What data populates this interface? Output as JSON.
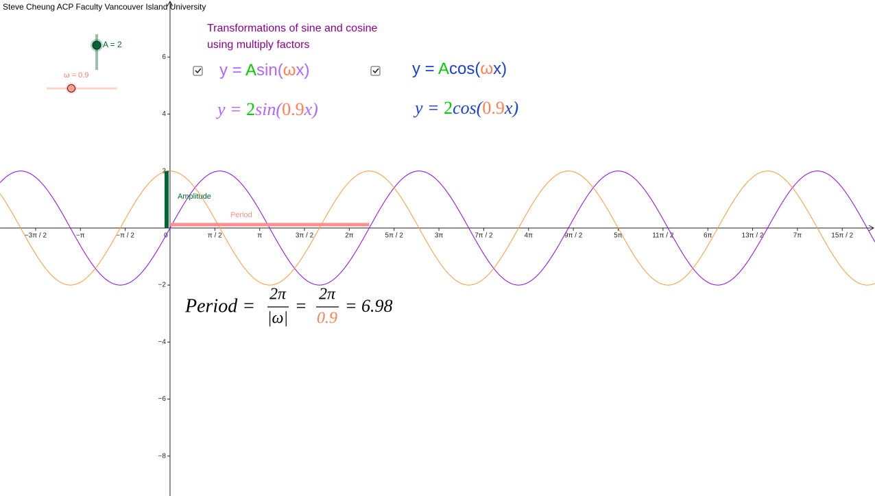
{
  "credit": "Steve Cheung ACP Faculty Vancouver Island University",
  "heading": [
    "Transformations of sine and cosine",
    "using multiply factors"
  ],
  "sliders": [
    {
      "label": "A = 2",
      "value": 2,
      "color": "#006633"
    },
    {
      "label": "ω = 0.9",
      "value": 0.9,
      "color": "#ff7c6b"
    }
  ],
  "formulas": [
    [
      {
        "text": "y = ",
        "color": "#b266ff"
      },
      {
        "text": "A",
        "color": "#00cc00"
      },
      {
        "text": "sin(",
        "color": "#b266ff"
      },
      {
        "text": "ω",
        "color": "#ff7f50"
      },
      {
        "text": "x)",
        "color": "#b266ff"
      }
    ],
    [
      {
        "text": "y = ",
        "color": "#1a3fd6"
      },
      {
        "text": "A",
        "color": "#00cc00"
      },
      {
        "text": "cos(",
        "color": "#1a3fd6"
      },
      {
        "text": "ω",
        "color": "#ff7f50"
      },
      {
        "text": "x)",
        "color": "#1a3fd6"
      }
    ],
    [
      {
        "text": "y = ",
        "color": "#b266ff"
      },
      {
        "text": "2",
        "color": "#00cc00"
      },
      {
        "text": "sin(",
        "color": "#b266ff"
      },
      {
        "text": "0.9",
        "color": "#ff7f50"
      },
      {
        "text": "x)",
        "color": "#b266ff"
      }
    ],
    [
      {
        "text": "y = ",
        "color": "#1a3fd6"
      },
      {
        "text": "2",
        "color": "#00cc00"
      },
      {
        "text": "cos(",
        "color": "#1a3fd6"
      },
      {
        "text": "0.9",
        "color": "#ff7f50"
      },
      {
        "text": "x)",
        "color": "#1a3fd6"
      }
    ]
  ],
  "period_formula": {
    "lhs": "Period =",
    "num1": "2π",
    "den1": "|ω|",
    "eq": "=",
    "num2": "2π",
    "den2": "0.9",
    "result": "= 6.98",
    "period": 6.98
  },
  "graph": {
    "xlim": [
      -5.96,
      24.71
    ],
    "ylim": [
      -9.4,
      8.0
    ],
    "xticks": [
      {
        "value": -4.712,
        "label": "−3π / 2"
      },
      {
        "value": -3.142,
        "label": "−π"
      },
      {
        "value": -1.571,
        "label": "−π / 2"
      },
      0,
      {
        "value": 1.571,
        "label": "π / 2"
      },
      {
        "value": 3.142,
        "label": "π"
      },
      {
        "value": 4.712,
        "label": "3π / 2"
      },
      {
        "value": 6.283,
        "label": "2π"
      },
      {
        "value": 7.854,
        "label": "5π / 2"
      },
      {
        "value": 9.425,
        "label": "3π"
      },
      {
        "value": 10.996,
        "label": "7π / 2"
      },
      {
        "value": 12.566,
        "label": "4π"
      },
      {
        "value": 14.137,
        "label": "9π / 2"
      },
      {
        "value": 15.708,
        "label": "5π"
      },
      {
        "value": 17.279,
        "label": "11π / 2"
      },
      {
        "value": 18.85,
        "label": "6π"
      },
      {
        "value": 20.42,
        "label": "13π / 2"
      },
      {
        "value": 21.991,
        "label": "7π"
      },
      {
        "value": 23.562,
        "label": "15π / 2"
      }
    ],
    "yticks": [
      6,
      4,
      2,
      {
        "value": -2,
        "label": "−2"
      },
      {
        "value": -4,
        "label": "−4"
      },
      {
        "value": -6,
        "label": "−6"
      },
      {
        "value": -8,
        "label": "−8"
      }
    ],
    "functions": [
      {
        "kind": "sin",
        "color": "#8c00ff"
      },
      {
        "kind": "cos",
        "color": "#ff9933"
      }
    ],
    "amplitude_label": "Amplitude",
    "period_label": "Period"
  }
}
